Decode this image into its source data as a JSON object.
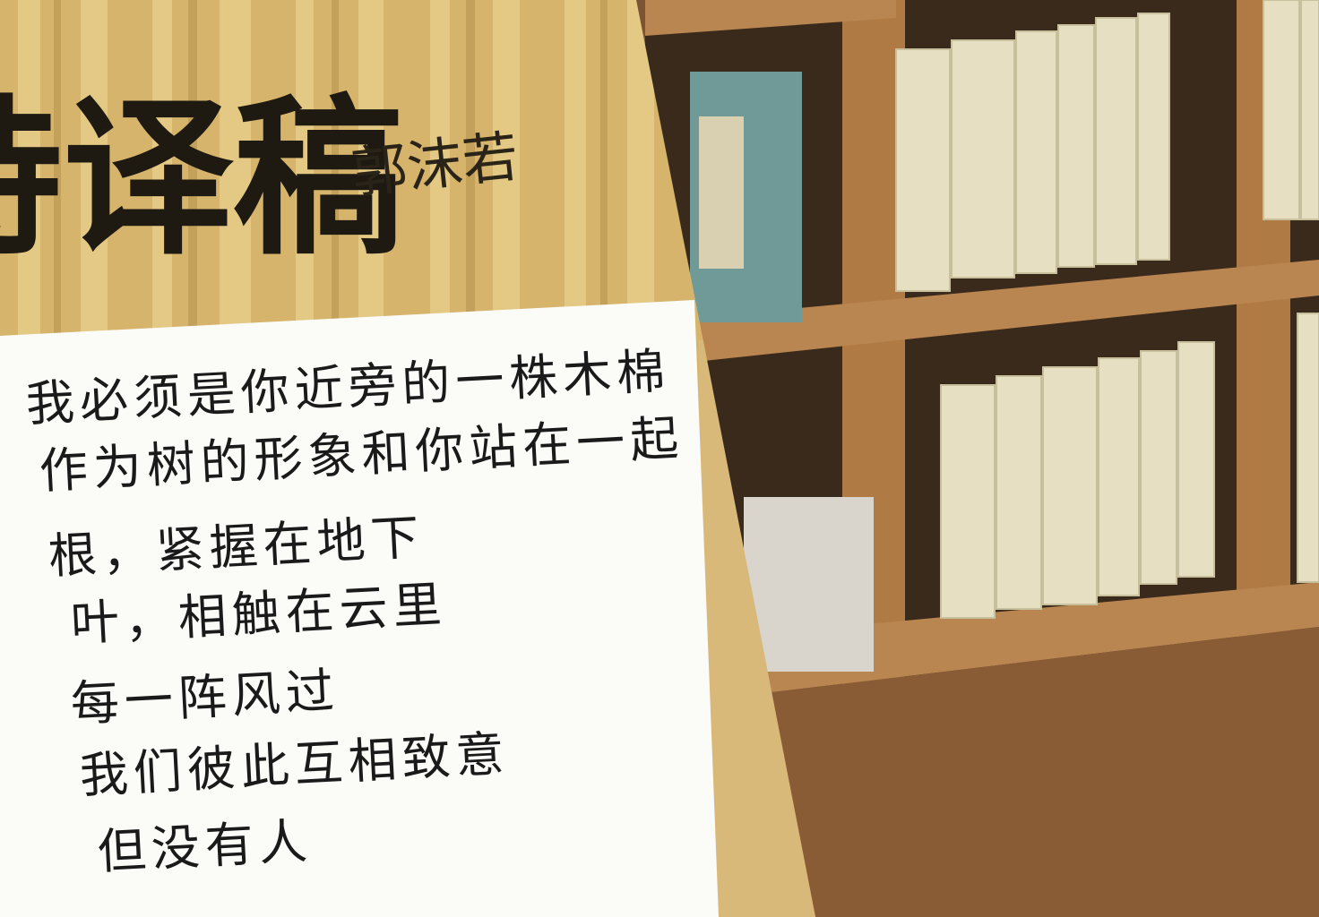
{
  "cover": {
    "title": "诗译稿",
    "author": "郭沫若"
  },
  "note": {
    "lines": [
      "我必须是你近旁的一株木棉",
      "作为树的形象和你站在一起",
      "根，紧握在地下",
      "叶，相触在云里",
      "每一阵风过",
      "我们彼此互相致意",
      "但没有人"
    ]
  }
}
